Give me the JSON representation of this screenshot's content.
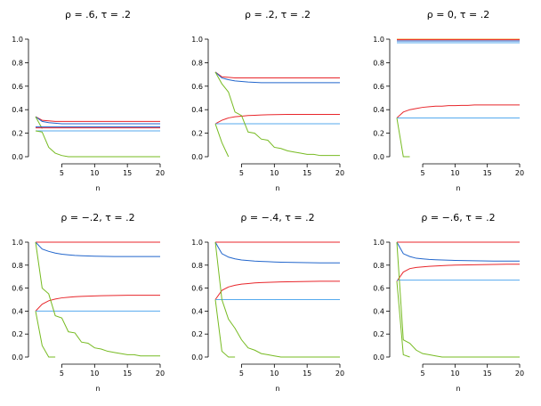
{
  "colors": {
    "red": "#e8262b",
    "blue": "#2266cc",
    "lightblue": "#55aaee",
    "green": "#77bb22",
    "orange": "#f0a030"
  },
  "chart_data": [
    {
      "type": "line",
      "title": "ρ = .6,  τ = .2",
      "xlabel": "n",
      "ylabel": "",
      "xlim": [
        1,
        20
      ],
      "ylim": [
        0,
        1
      ],
      "xticks": [
        5,
        10,
        15,
        20
      ],
      "yticks": [
        "0.0",
        "0.2",
        "0.4",
        "0.6",
        "0.8",
        "1.0"
      ],
      "series": [
        {
          "color": "red",
          "x": [
            1,
            2,
            3,
            4,
            5,
            6,
            7,
            8,
            9,
            10,
            11,
            12,
            13,
            14,
            15,
            16,
            17,
            18,
            19,
            20
          ],
          "y": [
            0.34,
            0.31,
            0.305,
            0.3,
            0.3,
            0.3,
            0.3,
            0.3,
            0.3,
            0.3,
            0.3,
            0.3,
            0.3,
            0.3,
            0.3,
            0.3,
            0.3,
            0.3,
            0.3,
            0.3
          ]
        },
        {
          "color": "blue",
          "x": [
            1,
            2,
            3,
            4,
            5,
            6,
            7,
            8,
            9,
            10,
            11,
            12,
            13,
            14,
            15,
            16,
            17,
            18,
            19,
            20
          ],
          "y": [
            0.34,
            0.3,
            0.29,
            0.285,
            0.28,
            0.28,
            0.28,
            0.28,
            0.28,
            0.28,
            0.28,
            0.28,
            0.28,
            0.28,
            0.28,
            0.28,
            0.28,
            0.28,
            0.28,
            0.28
          ]
        },
        {
          "color": "lightblue",
          "x": [
            1,
            20
          ],
          "y": [
            0.22,
            0.22
          ]
        },
        {
          "color": "green",
          "x": [
            1,
            2,
            3,
            4,
            5,
            6,
            7,
            8,
            9,
            10,
            11,
            12,
            13,
            14,
            15,
            16,
            17,
            18,
            19,
            20
          ],
          "y": [
            0.22,
            0.21,
            0.08,
            0.03,
            0.01,
            0.0,
            0.0,
            0.0,
            0.0,
            0.0,
            0.0,
            0.0,
            0.0,
            0.0,
            0.0,
            0.0,
            0.0,
            0.0,
            0.0,
            0.0
          ]
        },
        {
          "color": "green",
          "x": [
            1,
            2
          ],
          "y": [
            0.34,
            0.24
          ]
        },
        {
          "color": "red",
          "x": [
            1,
            20
          ],
          "y": [
            0.245,
            0.245
          ]
        },
        {
          "color": "blue",
          "x": [
            1,
            20
          ],
          "y": [
            0.255,
            0.255
          ]
        }
      ]
    },
    {
      "type": "line",
      "title": "ρ = .2,  τ = .2",
      "xlabel": "n",
      "ylabel": "",
      "xlim": [
        1,
        20
      ],
      "ylim": [
        0,
        1
      ],
      "xticks": [
        5,
        10,
        15,
        20
      ],
      "yticks": [
        "0.0",
        "0.2",
        "0.4",
        "0.6",
        "0.8",
        "1.0"
      ],
      "series": [
        {
          "color": "red",
          "x": [
            1,
            2,
            3,
            4,
            5,
            6,
            7,
            8,
            9,
            10,
            11,
            12,
            13,
            14,
            15,
            16,
            17,
            18,
            19,
            20
          ],
          "y": [
            0.72,
            0.68,
            0.675,
            0.67,
            0.67,
            0.67,
            0.67,
            0.67,
            0.67,
            0.67,
            0.67,
            0.67,
            0.67,
            0.67,
            0.67,
            0.67,
            0.67,
            0.67,
            0.67,
            0.67
          ]
        },
        {
          "color": "blue",
          "x": [
            1,
            2,
            3,
            4,
            5,
            6,
            7,
            8,
            9,
            10,
            11,
            12,
            13,
            14,
            15,
            16,
            17,
            18,
            19,
            20
          ],
          "y": [
            0.72,
            0.67,
            0.655,
            0.645,
            0.64,
            0.635,
            0.633,
            0.63,
            0.63,
            0.63,
            0.63,
            0.63,
            0.63,
            0.63,
            0.63,
            0.63,
            0.63,
            0.63,
            0.63,
            0.63
          ]
        },
        {
          "color": "red",
          "x": [
            1,
            2,
            3,
            4,
            5,
            6,
            7,
            8,
            9,
            10,
            11,
            12,
            13,
            14,
            15,
            16,
            17,
            18,
            19,
            20
          ],
          "y": [
            0.28,
            0.31,
            0.33,
            0.34,
            0.345,
            0.35,
            0.352,
            0.355,
            0.357,
            0.358,
            0.359,
            0.36,
            0.36,
            0.36,
            0.36,
            0.36,
            0.36,
            0.36,
            0.36,
            0.36
          ]
        },
        {
          "color": "lightblue",
          "x": [
            1,
            20
          ],
          "y": [
            0.28,
            0.28
          ]
        },
        {
          "color": "green",
          "x": [
            1,
            2,
            3,
            4,
            5,
            6,
            7,
            8,
            9,
            10,
            11,
            12,
            13,
            14,
            15,
            16,
            17,
            18,
            19,
            20
          ],
          "y": [
            0.72,
            0.62,
            0.55,
            0.38,
            0.35,
            0.21,
            0.2,
            0.15,
            0.14,
            0.08,
            0.07,
            0.05,
            0.04,
            0.03,
            0.02,
            0.02,
            0.01,
            0.01,
            0.01,
            0.01
          ]
        },
        {
          "color": "green",
          "x": [
            1,
            2,
            3
          ],
          "y": [
            0.28,
            0.12,
            0.0
          ]
        }
      ]
    },
    {
      "type": "line",
      "title": "ρ = 0,  τ = .2",
      "xlabel": "n",
      "ylabel": "",
      "xlim": [
        1,
        20
      ],
      "ylim": [
        0,
        1
      ],
      "xticks": [
        5,
        10,
        15,
        20
      ],
      "yticks": [
        "0.0",
        "0.2",
        "0.4",
        "0.6",
        "0.8",
        "1.0"
      ],
      "series": [
        {
          "color": "orange",
          "x": [
            1,
            20
          ],
          "y": [
            1.0,
            1.0
          ]
        },
        {
          "color": "red",
          "x": [
            1,
            20
          ],
          "y": [
            0.995,
            0.995
          ]
        },
        {
          "color": "blue",
          "x": [
            1,
            20
          ],
          "y": [
            0.985,
            0.985
          ]
        },
        {
          "color": "lightblue",
          "x": [
            1,
            20
          ],
          "y": [
            0.97,
            0.97
          ]
        },
        {
          "color": "red",
          "x": [
            1,
            2,
            3,
            4,
            5,
            6,
            7,
            8,
            9,
            10,
            11,
            12,
            13,
            14,
            15,
            16,
            17,
            18,
            19,
            20
          ],
          "y": [
            0.33,
            0.38,
            0.4,
            0.41,
            0.42,
            0.425,
            0.43,
            0.43,
            0.435,
            0.435,
            0.437,
            0.437,
            0.44,
            0.44,
            0.44,
            0.44,
            0.44,
            0.44,
            0.44,
            0.44
          ]
        },
        {
          "color": "lightblue",
          "x": [
            1,
            20
          ],
          "y": [
            0.33,
            0.33
          ]
        },
        {
          "color": "green",
          "x": [
            1,
            2,
            3
          ],
          "y": [
            0.33,
            0.0,
            0.0
          ]
        }
      ]
    },
    {
      "type": "line",
      "title": "ρ = −.2,  τ = .2",
      "xlabel": "n",
      "ylabel": "",
      "xlim": [
        1,
        20
      ],
      "ylim": [
        0,
        1
      ],
      "xticks": [
        5,
        10,
        15,
        20
      ],
      "yticks": [
        "0.0",
        "0.2",
        "0.4",
        "0.6",
        "0.8",
        "1.0"
      ],
      "series": [
        {
          "color": "red",
          "x": [
            1,
            20
          ],
          "y": [
            1.0,
            1.0
          ]
        },
        {
          "color": "blue",
          "x": [
            1,
            2,
            3,
            4,
            5,
            6,
            7,
            8,
            9,
            10,
            11,
            12,
            13,
            14,
            15,
            16,
            17,
            18,
            19,
            20
          ],
          "y": [
            1.0,
            0.94,
            0.92,
            0.905,
            0.895,
            0.89,
            0.885,
            0.882,
            0.88,
            0.878,
            0.877,
            0.876,
            0.875,
            0.875,
            0.875,
            0.875,
            0.875,
            0.875,
            0.875,
            0.875
          ]
        },
        {
          "color": "red",
          "x": [
            1,
            2,
            3,
            4,
            5,
            6,
            7,
            8,
            9,
            10,
            11,
            12,
            13,
            14,
            15,
            16,
            17,
            18,
            19,
            20
          ],
          "y": [
            0.4,
            0.46,
            0.49,
            0.505,
            0.515,
            0.52,
            0.525,
            0.528,
            0.53,
            0.532,
            0.534,
            0.535,
            0.536,
            0.537,
            0.538,
            0.538,
            0.538,
            0.538,
            0.538,
            0.538
          ]
        },
        {
          "color": "lightblue",
          "x": [
            1,
            20
          ],
          "y": [
            0.4,
            0.4
          ]
        },
        {
          "color": "green",
          "x": [
            1,
            2,
            3,
            4,
            5,
            6,
            7,
            8,
            9,
            10,
            11,
            12,
            13,
            14,
            15,
            16,
            17,
            18,
            19,
            20
          ],
          "y": [
            1.0,
            0.6,
            0.55,
            0.36,
            0.34,
            0.22,
            0.21,
            0.13,
            0.12,
            0.08,
            0.07,
            0.05,
            0.04,
            0.03,
            0.02,
            0.02,
            0.01,
            0.01,
            0.01,
            0.01
          ]
        },
        {
          "color": "green",
          "x": [
            1,
            2,
            3,
            4
          ],
          "y": [
            0.4,
            0.1,
            0.0,
            0.0
          ]
        }
      ]
    },
    {
      "type": "line",
      "title": "ρ = −.4,  τ = .2",
      "xlabel": "n",
      "ylabel": "",
      "xlim": [
        1,
        20
      ],
      "ylim": [
        0,
        1
      ],
      "xticks": [
        5,
        10,
        15,
        20
      ],
      "yticks": [
        "0.0",
        "0.2",
        "0.4",
        "0.6",
        "0.8",
        "1.0"
      ],
      "series": [
        {
          "color": "red",
          "x": [
            1,
            20
          ],
          "y": [
            1.0,
            1.0
          ]
        },
        {
          "color": "blue",
          "x": [
            1,
            2,
            3,
            4,
            5,
            6,
            7,
            8,
            9,
            10,
            11,
            12,
            13,
            14,
            15,
            16,
            17,
            18,
            19,
            20
          ],
          "y": [
            1.0,
            0.9,
            0.87,
            0.855,
            0.845,
            0.84,
            0.835,
            0.832,
            0.83,
            0.828,
            0.826,
            0.825,
            0.824,
            0.823,
            0.822,
            0.821,
            0.82,
            0.82,
            0.82,
            0.82
          ]
        },
        {
          "color": "red",
          "x": [
            1,
            2,
            3,
            4,
            5,
            6,
            7,
            8,
            9,
            10,
            11,
            12,
            13,
            14,
            15,
            16,
            17,
            18,
            19,
            20
          ],
          "y": [
            0.5,
            0.58,
            0.61,
            0.625,
            0.635,
            0.64,
            0.645,
            0.648,
            0.65,
            0.652,
            0.654,
            0.655,
            0.656,
            0.657,
            0.658,
            0.659,
            0.66,
            0.66,
            0.66,
            0.66
          ]
        },
        {
          "color": "lightblue",
          "x": [
            1,
            20
          ],
          "y": [
            0.5,
            0.5
          ]
        },
        {
          "color": "green",
          "x": [
            1,
            2,
            3,
            4,
            5,
            6,
            7,
            8,
            9,
            10,
            11,
            12,
            13,
            14,
            15,
            16,
            17,
            18,
            19,
            20
          ],
          "y": [
            1.0,
            0.5,
            0.33,
            0.25,
            0.15,
            0.08,
            0.06,
            0.03,
            0.02,
            0.01,
            0.0,
            0.0,
            0.0,
            0.0,
            0.0,
            0.0,
            0.0,
            0.0,
            0.0,
            0.0
          ]
        },
        {
          "color": "green",
          "x": [
            1,
            2,
            3,
            4
          ],
          "y": [
            0.5,
            0.05,
            0.0,
            0.0
          ]
        }
      ]
    },
    {
      "type": "line",
      "title": "ρ = −.6,  τ = .2",
      "xlabel": "n",
      "ylabel": "",
      "xlim": [
        1,
        20
      ],
      "ylim": [
        0,
        1
      ],
      "xticks": [
        5,
        10,
        15,
        20
      ],
      "yticks": [
        "0.0",
        "0.2",
        "0.4",
        "0.6",
        "0.8",
        "1.0"
      ],
      "series": [
        {
          "color": "red",
          "x": [
            1,
            20
          ],
          "y": [
            1.0,
            1.0
          ]
        },
        {
          "color": "blue",
          "x": [
            1,
            2,
            3,
            4,
            5,
            6,
            7,
            8,
            9,
            10,
            11,
            12,
            13,
            14,
            15,
            16,
            17,
            18,
            19,
            20
          ],
          "y": [
            1.0,
            0.9,
            0.875,
            0.86,
            0.855,
            0.85,
            0.847,
            0.845,
            0.843,
            0.841,
            0.84,
            0.839,
            0.838,
            0.837,
            0.836,
            0.835,
            0.835,
            0.835,
            0.835,
            0.835
          ]
        },
        {
          "color": "red",
          "x": [
            1,
            2,
            3,
            4,
            5,
            6,
            7,
            8,
            9,
            10,
            11,
            12,
            13,
            14,
            15,
            16,
            17,
            18,
            19,
            20
          ],
          "y": [
            0.66,
            0.74,
            0.77,
            0.78,
            0.785,
            0.79,
            0.793,
            0.796,
            0.798,
            0.8,
            0.801,
            0.802,
            0.803,
            0.804,
            0.805,
            0.806,
            0.807,
            0.808,
            0.808,
            0.808
          ]
        },
        {
          "color": "lightblue",
          "x": [
            1,
            20
          ],
          "y": [
            0.67,
            0.67
          ]
        },
        {
          "color": "green",
          "x": [
            1,
            2,
            3,
            4,
            5,
            6,
            7,
            8,
            9,
            10,
            11,
            12,
            13,
            14,
            15,
            16,
            17,
            18,
            19,
            20
          ],
          "y": [
            1.0,
            0.15,
            0.12,
            0.06,
            0.03,
            0.02,
            0.01,
            0.0,
            0.0,
            0.0,
            0.0,
            0.0,
            0.0,
            0.0,
            0.0,
            0.0,
            0.0,
            0.0,
            0.0,
            0.0
          ]
        },
        {
          "color": "green",
          "x": [
            1,
            2,
            3
          ],
          "y": [
            0.66,
            0.02,
            0.0
          ]
        }
      ]
    }
  ]
}
